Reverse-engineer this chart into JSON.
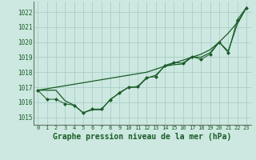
{
  "background_color": "#cce8e0",
  "grid_color": "#aacfc8",
  "line_color": "#1a5c28",
  "xlabel": "Graphe pression niveau de la mer (hPa)",
  "xlim": [
    -0.5,
    23.5
  ],
  "ylim": [
    1014.5,
    1022.7
  ],
  "yticks": [
    1015,
    1016,
    1017,
    1018,
    1019,
    1020,
    1021,
    1022
  ],
  "xticks": [
    0,
    1,
    2,
    3,
    4,
    5,
    6,
    7,
    8,
    9,
    10,
    11,
    12,
    13,
    14,
    15,
    16,
    17,
    18,
    19,
    20,
    21,
    22,
    23
  ],
  "series_smooth": {
    "x": [
      0,
      1,
      2,
      3,
      4,
      5,
      6,
      7,
      8,
      9,
      10,
      11,
      12,
      13,
      14,
      15,
      16,
      17,
      18,
      19,
      20,
      21,
      22,
      23
    ],
    "y": [
      1016.8,
      1016.9,
      1017.0,
      1017.1,
      1017.2,
      1017.3,
      1017.4,
      1017.5,
      1017.6,
      1017.7,
      1017.8,
      1017.9,
      1018.0,
      1018.2,
      1018.4,
      1018.6,
      1018.8,
      1019.0,
      1019.2,
      1019.5,
      1020.0,
      1020.6,
      1021.3,
      1022.3
    ]
  },
  "series_markers": {
    "x": [
      0,
      1,
      2,
      3,
      4,
      5,
      6,
      7,
      8,
      9,
      10,
      11,
      12,
      13,
      14,
      15,
      16,
      17,
      18,
      19,
      20,
      21,
      22,
      23
    ],
    "y": [
      1016.8,
      1016.2,
      1016.2,
      1015.9,
      1015.8,
      1015.3,
      1015.55,
      1015.55,
      1016.15,
      1016.65,
      1017.0,
      1017.05,
      1017.65,
      1017.7,
      1018.45,
      1018.65,
      1018.6,
      1019.05,
      1018.85,
      1019.2,
      1020.0,
      1019.3,
      1021.5,
      1022.3
    ]
  },
  "series_extra": {
    "x": [
      0,
      1,
      2,
      3,
      4,
      5,
      6,
      7,
      8,
      9,
      10,
      11,
      12,
      13,
      14,
      15,
      16,
      17,
      18,
      19,
      20,
      21,
      22,
      23
    ],
    "y": [
      1016.8,
      1016.8,
      1016.8,
      1016.1,
      1015.8,
      1015.3,
      1015.5,
      1015.5,
      1016.2,
      1016.6,
      1017.0,
      1017.0,
      1017.6,
      1017.8,
      1018.4,
      1018.5,
      1018.55,
      1019.0,
      1019.0,
      1019.3,
      1020.0,
      1019.4,
      1021.2,
      1022.3
    ]
  }
}
